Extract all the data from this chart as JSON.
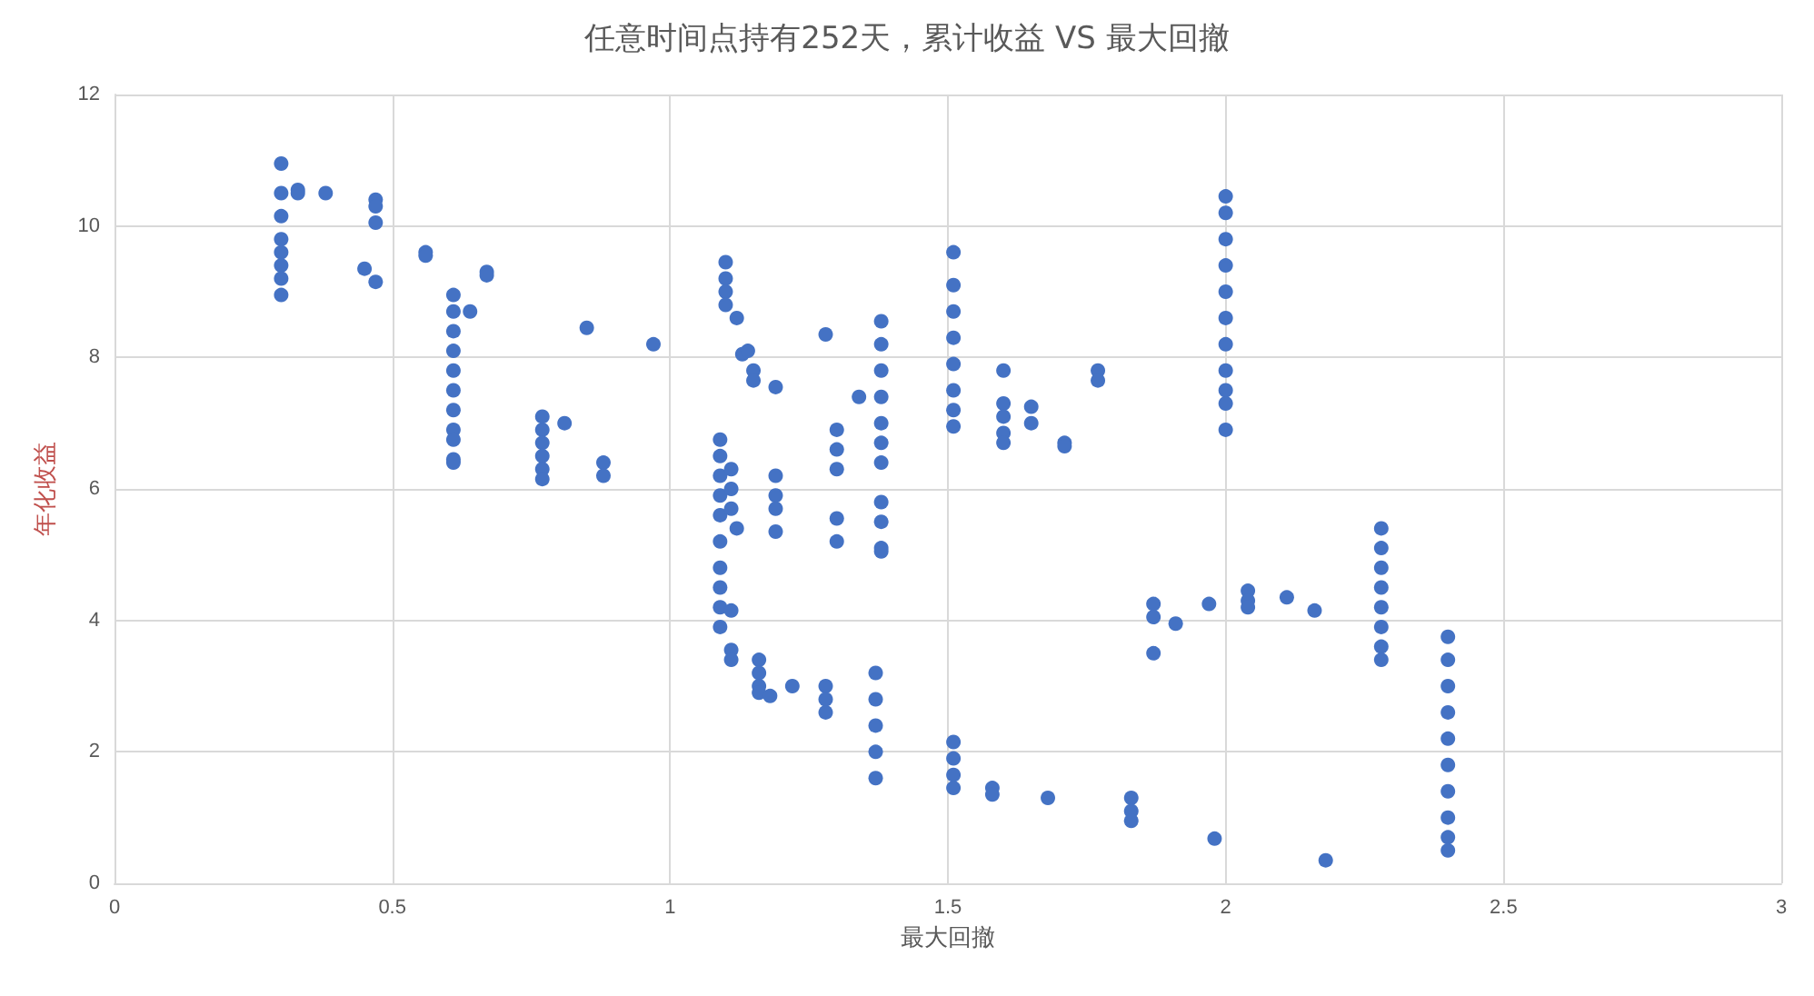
{
  "chart_data": {
    "type": "scatter",
    "title": "任意时间点持有252天，累计收益 VS 最大回撤",
    "xlabel": "最大回撤",
    "ylabel": "年化收益",
    "x": [
      0.3,
      0.3,
      0.3,
      0.3,
      0.3,
      0.3,
      0.3,
      0.3,
      0.33,
      0.33,
      0.38,
      0.47,
      0.47,
      0.47,
      0.45,
      0.47,
      0.56,
      0.56,
      0.67,
      0.67,
      0.61,
      0.61,
      0.61,
      0.61,
      0.61,
      0.61,
      0.61,
      0.61,
      0.61,
      0.61,
      0.61,
      0.64,
      0.85,
      0.97,
      0.77,
      0.77,
      0.77,
      0.77,
      0.77,
      0.77,
      0.81,
      0.88,
      0.88,
      1.1,
      1.1,
      1.1,
      1.1,
      1.12,
      1.13,
      1.14,
      1.15,
      1.15,
      1.19,
      1.28,
      1.34,
      1.38,
      1.38,
      1.38,
      1.38,
      1.38,
      1.38,
      1.38,
      1.3,
      1.3,
      1.3,
      1.3,
      1.3,
      1.38,
      1.38,
      1.38,
      1.38,
      1.09,
      1.09,
      1.09,
      1.09,
      1.09,
      1.09,
      1.09,
      1.09,
      1.09,
      1.09,
      1.11,
      1.11,
      1.11,
      1.12,
      1.11,
      1.19,
      1.19,
      1.19,
      1.19,
      1.11,
      1.11,
      1.16,
      1.16,
      1.16,
      1.16,
      1.18,
      1.22,
      1.28,
      1.28,
      1.28,
      1.37,
      1.37,
      1.37,
      1.37,
      1.37,
      1.51,
      1.51,
      1.51,
      1.51,
      1.51,
      1.51,
      1.51,
      1.51,
      1.51,
      1.51,
      1.51,
      1.51,
      1.58,
      1.58,
      1.6,
      1.6,
      1.6,
      1.6,
      1.6,
      1.65,
      1.65,
      1.71,
      1.71,
      1.77,
      1.77,
      1.68,
      1.83,
      1.83,
      1.83,
      1.98,
      1.87,
      1.87,
      1.87,
      1.91,
      1.97,
      2.0,
      2.0,
      2.0,
      2.0,
      2.0,
      2.0,
      2.0,
      2.0,
      2.0,
      2.0,
      2.0,
      2.04,
      2.04,
      2.04,
      2.11,
      2.16,
      2.18,
      2.28,
      2.28,
      2.28,
      2.28,
      2.28,
      2.28,
      2.28,
      2.28,
      2.4,
      2.4,
      2.4,
      2.4,
      2.4,
      2.4,
      2.4,
      2.4,
      2.4,
      2.4
    ],
    "values": [
      10.95,
      10.5,
      10.15,
      9.8,
      9.6,
      9.4,
      9.2,
      8.95,
      10.55,
      10.5,
      10.5,
      10.4,
      10.3,
      10.05,
      9.35,
      9.15,
      9.6,
      9.55,
      9.3,
      9.25,
      8.95,
      8.7,
      8.4,
      8.1,
      7.8,
      7.5,
      7.2,
      6.9,
      6.75,
      6.45,
      6.4,
      8.7,
      8.45,
      8.2,
      7.1,
      6.9,
      6.7,
      6.5,
      6.3,
      6.15,
      7.0,
      6.4,
      6.2,
      9.45,
      9.2,
      9.0,
      8.8,
      8.6,
      8.05,
      8.1,
      7.8,
      7.65,
      7.55,
      8.35,
      7.4,
      8.55,
      8.2,
      7.8,
      7.4,
      7.0,
      6.7,
      6.4,
      6.9,
      6.6,
      6.3,
      5.55,
      5.2,
      5.8,
      5.5,
      5.1,
      5.05,
      6.75,
      6.5,
      6.2,
      5.9,
      5.6,
      5.2,
      4.8,
      4.5,
      4.2,
      3.9,
      6.3,
      6.0,
      5.7,
      5.4,
      4.15,
      6.2,
      5.9,
      5.7,
      5.35,
      3.55,
      3.4,
      3.4,
      3.2,
      3.0,
      2.9,
      2.85,
      3.0,
      3.0,
      2.8,
      2.6,
      3.2,
      2.8,
      2.4,
      2.0,
      1.6,
      9.6,
      9.1,
      8.7,
      8.3,
      7.9,
      7.5,
      7.2,
      6.95,
      2.15,
      1.9,
      1.65,
      1.45,
      1.45,
      1.35,
      7.8,
      7.3,
      7.1,
      6.85,
      6.7,
      7.25,
      7.0,
      6.7,
      6.65,
      7.8,
      7.65,
      1.3,
      1.3,
      1.1,
      0.95,
      0.68,
      4.25,
      4.05,
      3.5,
      3.95,
      4.25,
      10.45,
      10.2,
      9.8,
      9.4,
      9.0,
      8.6,
      8.2,
      7.8,
      7.5,
      7.3,
      6.9,
      4.45,
      4.3,
      4.2,
      4.35,
      4.15,
      0.35,
      5.4,
      5.1,
      4.8,
      4.5,
      4.2,
      3.9,
      3.6,
      3.4,
      3.75,
      3.4,
      3.0,
      2.6,
      2.2,
      1.8,
      1.4,
      1.0,
      0.7,
      0.5
    ],
    "color": "#4472c4",
    "marker": "circle",
    "xlim": [
      0,
      3
    ],
    "xticks": [
      0,
      0.5,
      1,
      1.5,
      2,
      2.5,
      3
    ],
    "ylim": [
      0,
      12
    ],
    "yticks": [
      0,
      2,
      4,
      6,
      8,
      10,
      12
    ],
    "grid": true
  }
}
